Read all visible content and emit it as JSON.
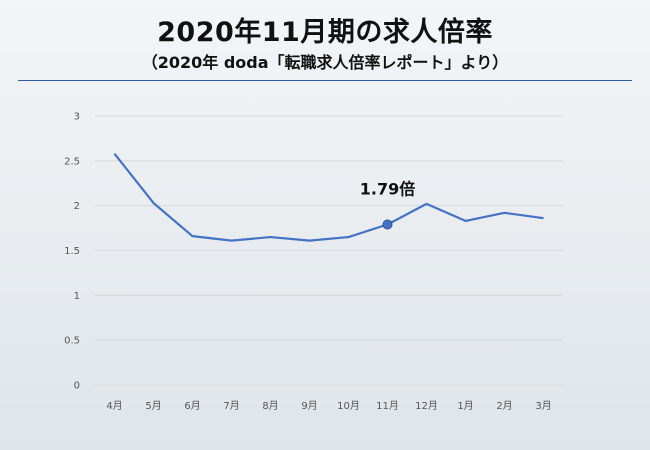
{
  "header": {
    "title": "2020年11月期の求人倍率",
    "subtitle": "（2020年 doda「転職求人倍率レポート」より）"
  },
  "chart_data": {
    "type": "line",
    "categories": [
      "4月",
      "5月",
      "6月",
      "7月",
      "8月",
      "9月",
      "10月",
      "11月",
      "12月",
      "1月",
      "2月",
      "3月"
    ],
    "series": [
      {
        "values": [
          2.58,
          2.03,
          1.66,
          1.61,
          1.65,
          1.61,
          1.65,
          1.79,
          2.02,
          1.83,
          1.92,
          1.86
        ]
      }
    ],
    "ylim": [
      0,
      3
    ],
    "yticks": [
      "0",
      "0.5",
      "1",
      "1.5",
      "2",
      "2.5",
      "3"
    ],
    "grid": true,
    "annotation": {
      "category_index": 7,
      "text": "1.79倍"
    },
    "colors": {
      "line": "#4472c4",
      "marker": "#4472c4",
      "grid": "#d9d9d9"
    }
  }
}
